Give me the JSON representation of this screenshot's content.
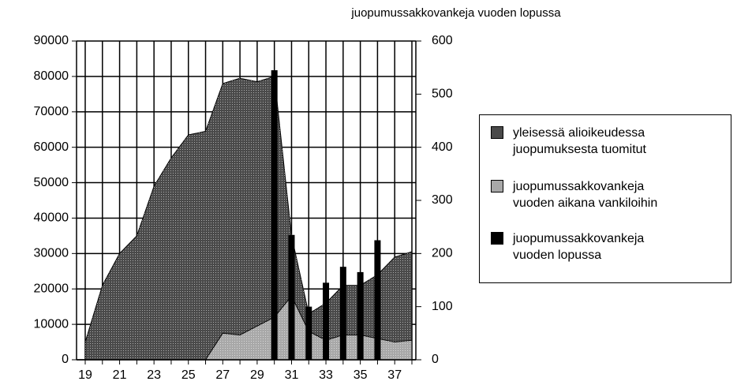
{
  "chart_data": {
    "type": "area-bar",
    "title": "juopumussakkovankeja vuoden lopussa",
    "categories": [
      "19",
      null,
      "21",
      null,
      "23",
      null,
      "25",
      null,
      "27",
      null,
      "29",
      null,
      "31",
      null,
      "33",
      null,
      "35",
      null,
      "37",
      null
    ],
    "series": [
      {
        "name": "yleisessä alioikeudessa\njuopumuksesta tuomitut",
        "type": "area",
        "color": "#4a4a4a",
        "values": [
          5000,
          21000,
          30000,
          35000,
          49000,
          57000,
          63500,
          64500,
          78000,
          79500,
          78500,
          80000,
          35000,
          13000,
          16000,
          21000,
          21000,
          24000,
          29000,
          30500
        ]
      },
      {
        "name": "juopumussakkovankeja\nvuoden aikana vankiloihin",
        "type": "area",
        "color": "#a8a8a8",
        "values": [
          0,
          0,
          0,
          0,
          0,
          0,
          0,
          0,
          7500,
          7000,
          9500,
          12000,
          18000,
          8000,
          5500,
          7000,
          7000,
          6000,
          5000,
          5500
        ]
      },
      {
        "name": "juopumussakkovankeja\nvuoden lopussa",
        "type": "bar",
        "axis": "y2",
        "color": "#000000",
        "values": [
          null,
          null,
          null,
          null,
          null,
          null,
          null,
          null,
          null,
          null,
          null,
          545,
          235,
          100,
          145,
          175,
          165,
          225,
          null,
          null
        ]
      }
    ],
    "ylim": [
      0,
      90000
    ],
    "yticks": [
      0,
      10000,
      20000,
      30000,
      40000,
      50000,
      60000,
      70000,
      80000,
      90000
    ],
    "y2lim": [
      0,
      600
    ],
    "y2ticks": [
      0,
      100,
      200,
      300,
      400,
      500,
      600
    ],
    "grid": true
  }
}
